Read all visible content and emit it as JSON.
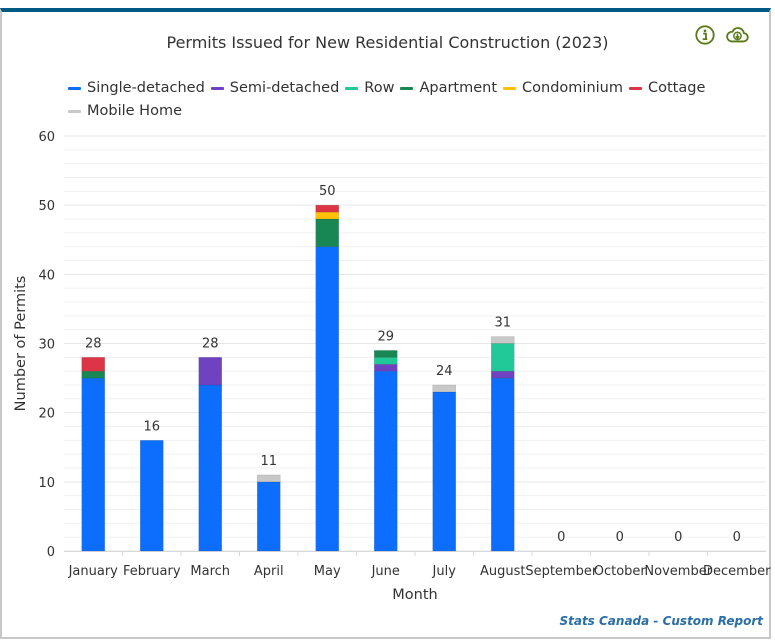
{
  "header": {
    "info_icon": "info-circle-icon",
    "download_icon": "cloud-download-icon"
  },
  "footer": {
    "credit": "Stats Canada - Custom Report"
  },
  "chart_data": {
    "type": "bar",
    "stacked": true,
    "title": "Permits Issued for New Residential Construction (2023)",
    "xlabel": "Month",
    "ylabel": "Number of Permits",
    "ylim": [
      0,
      60
    ],
    "yticks": [
      0,
      10,
      20,
      30,
      40,
      50,
      60
    ],
    "minor_grid_step": 2,
    "grid": true,
    "legend_position": "top-left",
    "categories": [
      "January",
      "February",
      "March",
      "April",
      "May",
      "June",
      "July",
      "August",
      "September",
      "October",
      "November",
      "December"
    ],
    "series": [
      {
        "name": "Single-detached",
        "color": "#0d6efd",
        "values": [
          25,
          16,
          24,
          10,
          44,
          26,
          23,
          25,
          0,
          0,
          0,
          0
        ]
      },
      {
        "name": "Semi-detached",
        "color": "#6f42c1",
        "values": [
          0,
          0,
          4,
          0,
          0,
          1,
          0,
          1,
          0,
          0,
          0,
          0
        ]
      },
      {
        "name": "Row",
        "color": "#20c997",
        "values": [
          0,
          0,
          0,
          0,
          0,
          1,
          0,
          4,
          0,
          0,
          0,
          0
        ]
      },
      {
        "name": "Apartment",
        "color": "#198754",
        "values": [
          1,
          0,
          0,
          0,
          4,
          1,
          0,
          0,
          0,
          0,
          0,
          0
        ]
      },
      {
        "name": "Condominium",
        "color": "#ffc107",
        "values": [
          0,
          0,
          0,
          0,
          1,
          0,
          0,
          0,
          0,
          0,
          0,
          0
        ]
      },
      {
        "name": "Cottage",
        "color": "#dc3545",
        "values": [
          2,
          0,
          0,
          0,
          1,
          0,
          0,
          0,
          0,
          0,
          0,
          0
        ]
      },
      {
        "name": "Mobile Home",
        "color": "#c8c8c8",
        "values": [
          0,
          0,
          0,
          1,
          0,
          0,
          1,
          1,
          0,
          0,
          0,
          0
        ]
      }
    ],
    "totals": [
      "28",
      "16",
      "28",
      "11",
      "50",
      "29",
      "24",
      "31",
      "0",
      "0",
      "0",
      "0"
    ]
  }
}
